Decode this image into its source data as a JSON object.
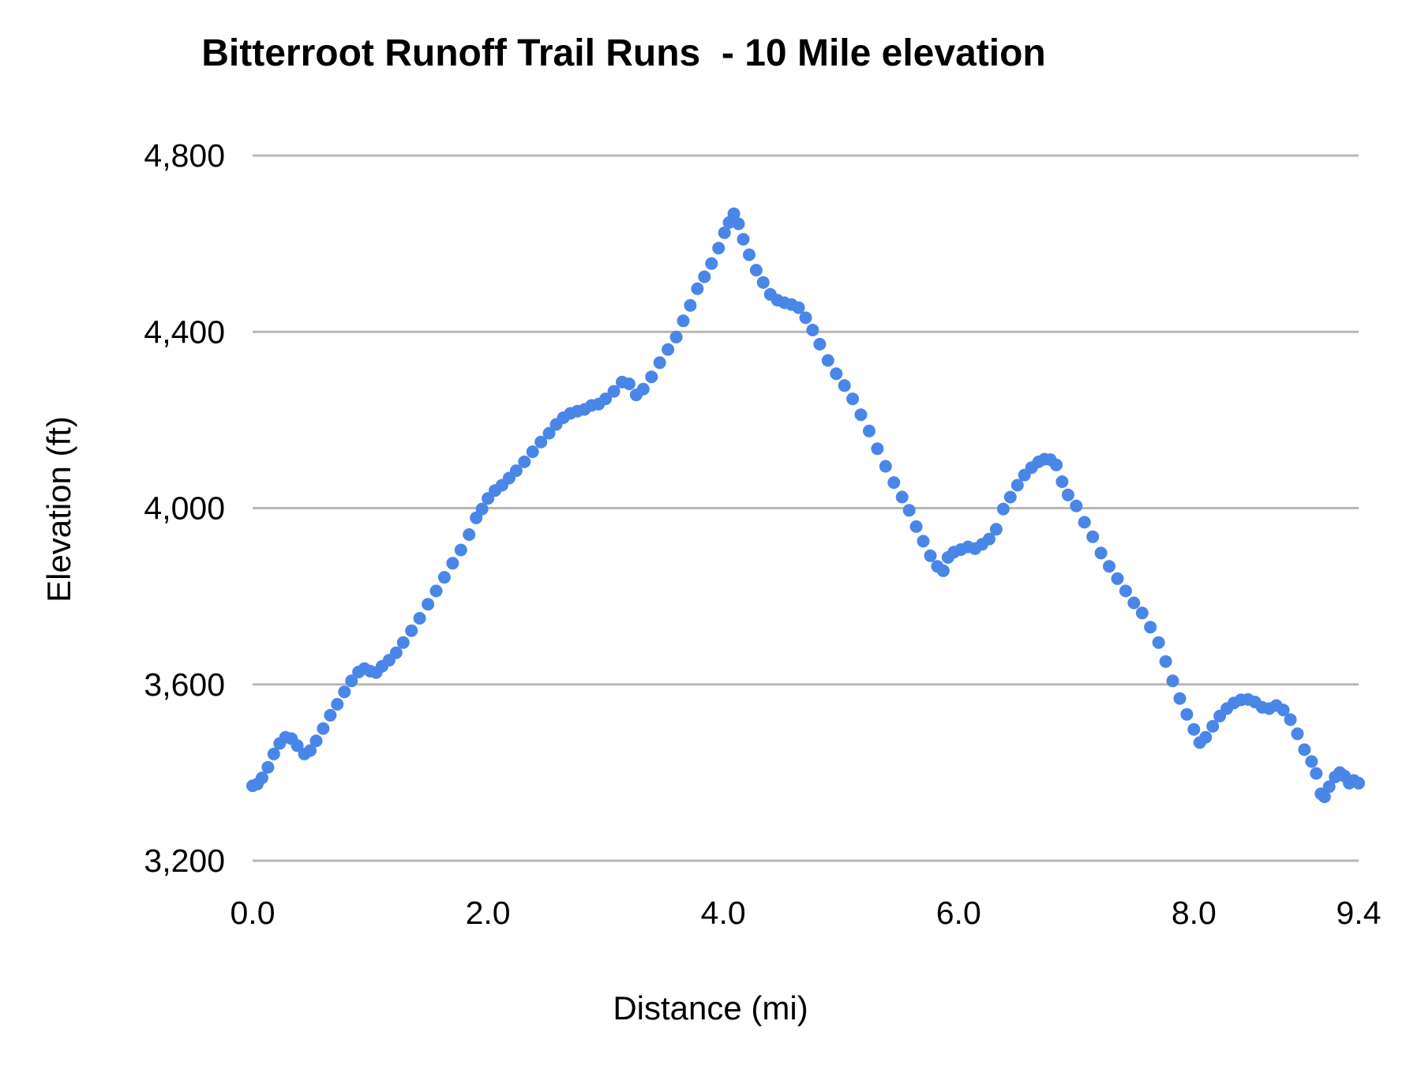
{
  "chart_data": {
    "type": "scatter",
    "title": "Bitterroot Runoff Trail Runs  - 10 Mile elevation",
    "xlabel": "Distance (mi)",
    "ylabel": "Elevation (ft)",
    "xlim": [
      0,
      9.4
    ],
    "ylim": [
      3200,
      4800
    ],
    "grid": "horizontal",
    "legend": "none",
    "point_color": "#4a86e8",
    "grid_color": "#b7b7b7",
    "x_ticks": [
      {
        "value": 0.0,
        "label": "0.0"
      },
      {
        "value": 2.0,
        "label": "2.0"
      },
      {
        "value": 4.0,
        "label": "4.0"
      },
      {
        "value": 6.0,
        "label": "6.0"
      },
      {
        "value": 8.0,
        "label": "8.0"
      },
      {
        "value": 9.4,
        "label": "9.4"
      }
    ],
    "y_ticks": [
      {
        "value": 4800,
        "label": "4,800"
      },
      {
        "value": 4400,
        "label": "4,400"
      },
      {
        "value": 4000,
        "label": "4,000"
      },
      {
        "value": 3600,
        "label": "3,600"
      },
      {
        "value": 3200,
        "label": "3,200"
      }
    ],
    "series": [
      {
        "name": "elevation",
        "points": [
          [
            0.0,
            3370
          ],
          [
            0.04,
            3374
          ],
          [
            0.08,
            3388
          ],
          [
            0.13,
            3412
          ],
          [
            0.18,
            3442
          ],
          [
            0.23,
            3466
          ],
          [
            0.28,
            3480
          ],
          [
            0.33,
            3477
          ],
          [
            0.38,
            3461
          ],
          [
            0.44,
            3442
          ],
          [
            0.49,
            3450
          ],
          [
            0.54,
            3472
          ],
          [
            0.6,
            3500
          ],
          [
            0.66,
            3530
          ],
          [
            0.72,
            3555
          ],
          [
            0.78,
            3583
          ],
          [
            0.84,
            3608
          ],
          [
            0.9,
            3628
          ],
          [
            0.95,
            3636
          ],
          [
            1.0,
            3630
          ],
          [
            1.05,
            3627
          ],
          [
            1.1,
            3641
          ],
          [
            1.16,
            3655
          ],
          [
            1.22,
            3672
          ],
          [
            1.28,
            3695
          ],
          [
            1.35,
            3722
          ],
          [
            1.42,
            3750
          ],
          [
            1.49,
            3782
          ],
          [
            1.56,
            3812
          ],
          [
            1.63,
            3843
          ],
          [
            1.7,
            3875
          ],
          [
            1.77,
            3905
          ],
          [
            1.84,
            3940
          ],
          [
            1.9,
            3978
          ],
          [
            1.95,
            3998
          ],
          [
            2.0,
            4022
          ],
          [
            2.06,
            4040
          ],
          [
            2.12,
            4052
          ],
          [
            2.18,
            4068
          ],
          [
            2.24,
            4085
          ],
          [
            2.31,
            4105
          ],
          [
            2.38,
            4128
          ],
          [
            2.45,
            4150
          ],
          [
            2.52,
            4170
          ],
          [
            2.58,
            4190
          ],
          [
            2.64,
            4205
          ],
          [
            2.7,
            4215
          ],
          [
            2.76,
            4220
          ],
          [
            2.82,
            4224
          ],
          [
            2.88,
            4233
          ],
          [
            2.94,
            4236
          ],
          [
            3.0,
            4248
          ],
          [
            3.07,
            4265
          ],
          [
            3.14,
            4286
          ],
          [
            3.2,
            4282
          ],
          [
            3.26,
            4257
          ],
          [
            3.32,
            4270
          ],
          [
            3.39,
            4298
          ],
          [
            3.46,
            4330
          ],
          [
            3.53,
            4360
          ],
          [
            3.6,
            4388
          ],
          [
            3.66,
            4425
          ],
          [
            3.72,
            4460
          ],
          [
            3.78,
            4498
          ],
          [
            3.84,
            4525
          ],
          [
            3.9,
            4555
          ],
          [
            3.96,
            4590
          ],
          [
            4.01,
            4625
          ],
          [
            4.05,
            4648
          ],
          [
            4.09,
            4668
          ],
          [
            4.13,
            4645
          ],
          [
            4.17,
            4610
          ],
          [
            4.22,
            4575
          ],
          [
            4.28,
            4540
          ],
          [
            4.34,
            4512
          ],
          [
            4.4,
            4485
          ],
          [
            4.46,
            4472
          ],
          [
            4.52,
            4466
          ],
          [
            4.58,
            4462
          ],
          [
            4.64,
            4455
          ],
          [
            4.7,
            4432
          ],
          [
            4.76,
            4404
          ],
          [
            4.82,
            4372
          ],
          [
            4.89,
            4335
          ],
          [
            4.96,
            4305
          ],
          [
            5.03,
            4278
          ],
          [
            5.1,
            4248
          ],
          [
            5.17,
            4212
          ],
          [
            5.24,
            4175
          ],
          [
            5.31,
            4135
          ],
          [
            5.38,
            4095
          ],
          [
            5.45,
            4058
          ],
          [
            5.52,
            4025
          ],
          [
            5.58,
            3995
          ],
          [
            5.64,
            3958
          ],
          [
            5.7,
            3925
          ],
          [
            5.76,
            3892
          ],
          [
            5.82,
            3868
          ],
          [
            5.87,
            3858
          ],
          [
            5.91,
            3888
          ],
          [
            5.96,
            3900
          ],
          [
            6.02,
            3906
          ],
          [
            6.08,
            3912
          ],
          [
            6.14,
            3908
          ],
          [
            6.2,
            3918
          ],
          [
            6.26,
            3930
          ],
          [
            6.32,
            3952
          ],
          [
            6.38,
            3998
          ],
          [
            6.44,
            4025
          ],
          [
            6.5,
            4052
          ],
          [
            6.56,
            4075
          ],
          [
            6.62,
            4092
          ],
          [
            6.68,
            4105
          ],
          [
            6.73,
            4111
          ],
          [
            6.78,
            4110
          ],
          [
            6.83,
            4098
          ],
          [
            6.88,
            4060
          ],
          [
            6.93,
            4030
          ],
          [
            7.0,
            4005
          ],
          [
            7.07,
            3968
          ],
          [
            7.14,
            3935
          ],
          [
            7.21,
            3898
          ],
          [
            7.28,
            3868
          ],
          [
            7.35,
            3840
          ],
          [
            7.42,
            3812
          ],
          [
            7.49,
            3785
          ],
          [
            7.56,
            3762
          ],
          [
            7.63,
            3730
          ],
          [
            7.7,
            3695
          ],
          [
            7.76,
            3652
          ],
          [
            7.82,
            3608
          ],
          [
            7.88,
            3568
          ],
          [
            7.94,
            3532
          ],
          [
            8.0,
            3498
          ],
          [
            8.05,
            3468
          ],
          [
            8.1,
            3480
          ],
          [
            8.16,
            3505
          ],
          [
            8.22,
            3528
          ],
          [
            8.28,
            3545
          ],
          [
            8.34,
            3558
          ],
          [
            8.4,
            3565
          ],
          [
            8.46,
            3566
          ],
          [
            8.52,
            3560
          ],
          [
            8.58,
            3548
          ],
          [
            8.64,
            3545
          ],
          [
            8.7,
            3552
          ],
          [
            8.76,
            3542
          ],
          [
            8.82,
            3520
          ],
          [
            8.88,
            3488
          ],
          [
            8.94,
            3452
          ],
          [
            9.0,
            3425
          ],
          [
            9.04,
            3398
          ],
          [
            9.08,
            3352
          ],
          [
            9.11,
            3345
          ],
          [
            9.15,
            3368
          ],
          [
            9.2,
            3390
          ],
          [
            9.24,
            3400
          ],
          [
            9.28,
            3392
          ],
          [
            9.32,
            3376
          ],
          [
            9.36,
            3382
          ],
          [
            9.4,
            3376
          ]
        ]
      }
    ]
  }
}
